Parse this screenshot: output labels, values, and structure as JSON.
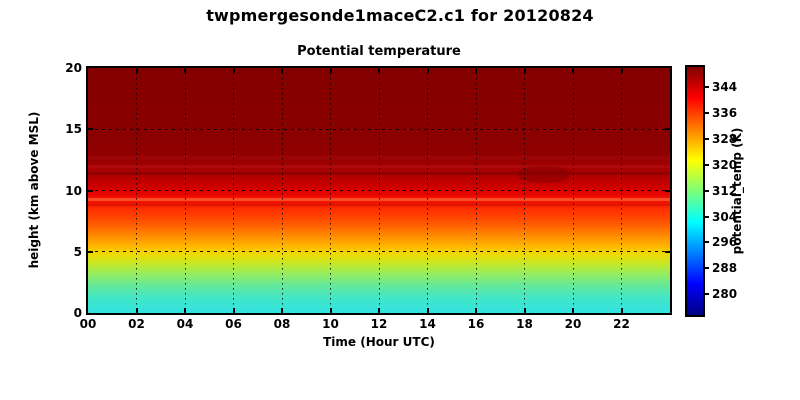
{
  "figure": {
    "title": "twpmergesonde1maceC2.c1 for 20120824",
    "plot_title": "Potential temperature"
  },
  "x_axis": {
    "label": "Time (Hour UTC)",
    "tick_labels": [
      "00",
      "02",
      "04",
      "06",
      "08",
      "10",
      "12",
      "14",
      "16",
      "18",
      "20",
      "22"
    ],
    "tick_hours": [
      0,
      2,
      4,
      6,
      8,
      10,
      12,
      14,
      16,
      18,
      20,
      22
    ],
    "hours_span": 24
  },
  "y_axis": {
    "label": "height (km above MSL)",
    "tick_labels": [
      "0",
      "5",
      "10",
      "15",
      "20"
    ],
    "tick_values": [
      0,
      5,
      10,
      15,
      20
    ],
    "max_km": 20
  },
  "colorbar": {
    "label": "potential_temp (K)",
    "tick_labels": [
      "344",
      "336",
      "328",
      "320",
      "312",
      "304",
      "296",
      "288",
      "280"
    ],
    "tick_values": [
      344,
      336,
      328,
      320,
      312,
      304,
      296,
      288,
      280
    ],
    "vmin": 273.5,
    "vmax": 350.3,
    "colormap": "jet"
  },
  "chart_data": {
    "type": "heatmap",
    "figure_title": "twpmergesonde1maceC2.c1 for 20120824",
    "title": "Potential temperature",
    "xlabel": "Time (Hour UTC)",
    "ylabel": "height (km above MSL)",
    "zlabel": "potential_temp (K)",
    "colormap": "jet",
    "x_range_hours": [
      0,
      24
    ],
    "y_range_km": [
      0,
      20
    ],
    "z_range_K": [
      273.5,
      350.3
    ],
    "x_ticks": [
      0,
      2,
      4,
      6,
      8,
      10,
      12,
      14,
      16,
      18,
      20,
      22
    ],
    "y_ticks": [
      0,
      5,
      10,
      15,
      20
    ],
    "z_ticks": [
      280,
      288,
      296,
      304,
      312,
      320,
      328,
      336,
      344
    ],
    "grid": true,
    "time_variation": "field is nearly constant across all 24 hours; thin layered bands between 9 and 12 km; slight lowering of the dark-red 11 km band near 18-19 UTC",
    "mean_profile": {
      "height_km": [
        0,
        1,
        2,
        3,
        4,
        5,
        6,
        7,
        8,
        9,
        9.5,
        10,
        11,
        12,
        15,
        20
      ],
      "potential_temp_K": [
        299,
        303,
        307,
        311,
        316,
        323,
        328,
        332,
        336,
        341,
        345,
        347,
        349,
        350,
        350,
        350
      ]
    }
  }
}
